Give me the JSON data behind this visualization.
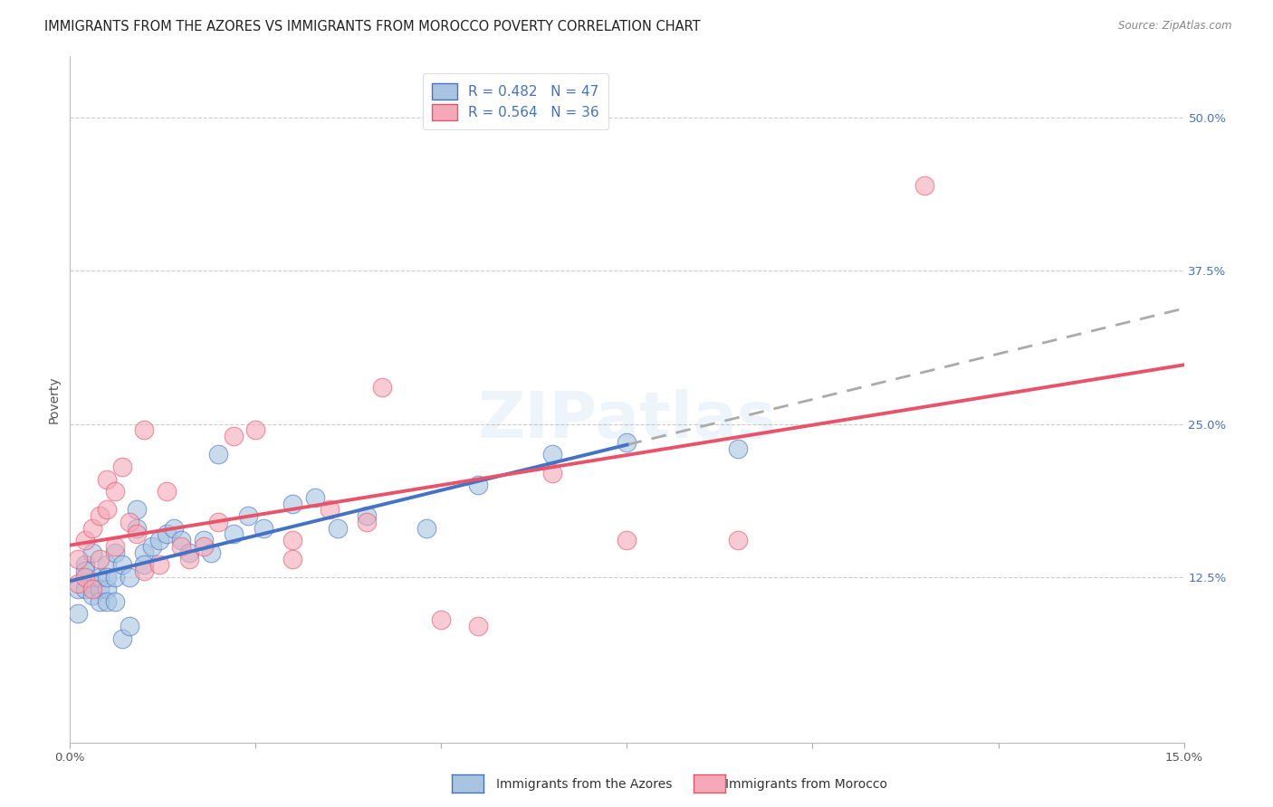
{
  "title": "IMMIGRANTS FROM THE AZORES VS IMMIGRANTS FROM MOROCCO POVERTY CORRELATION CHART",
  "source": "Source: ZipAtlas.com",
  "ylabel": "Poverty",
  "legend_label1": "R = 0.482   N = 47",
  "legend_label2": "R = 0.564   N = 36",
  "legend_sublabel1": "Immigrants from the Azores",
  "legend_sublabel2": "Immigrants from Morocco",
  "xlim": [
    0.0,
    0.15
  ],
  "ylim": [
    -0.01,
    0.55
  ],
  "xtick_positions": [
    0.0,
    0.025,
    0.05,
    0.075,
    0.1,
    0.125,
    0.15
  ],
  "xtick_labels_show": {
    "0.0": "0.0%",
    "0.15": "15.0%"
  },
  "yticks_right": [
    0.125,
    0.25,
    0.375,
    0.5
  ],
  "ytick_labels_right": [
    "12.5%",
    "25.0%",
    "37.5%",
    "50.0%"
  ],
  "color_blue": "#A8C4E0",
  "color_pink": "#F4A8B8",
  "color_blue_line": "#4472C4",
  "color_pink_line": "#E8536A",
  "color_dashed": "#AAAAAA",
  "background": "#FFFFFF",
  "watermark": "ZIPatlas",
  "azores_x": [
    0.001,
    0.001,
    0.002,
    0.002,
    0.002,
    0.003,
    0.003,
    0.003,
    0.004,
    0.004,
    0.004,
    0.005,
    0.005,
    0.005,
    0.005,
    0.006,
    0.006,
    0.006,
    0.007,
    0.007,
    0.008,
    0.008,
    0.009,
    0.009,
    0.01,
    0.01,
    0.011,
    0.012,
    0.013,
    0.014,
    0.015,
    0.016,
    0.018,
    0.019,
    0.02,
    0.022,
    0.024,
    0.026,
    0.03,
    0.033,
    0.036,
    0.04,
    0.048,
    0.055,
    0.065,
    0.075,
    0.09
  ],
  "azores_y": [
    0.115,
    0.095,
    0.135,
    0.115,
    0.13,
    0.12,
    0.11,
    0.145,
    0.115,
    0.105,
    0.125,
    0.135,
    0.115,
    0.105,
    0.125,
    0.145,
    0.125,
    0.105,
    0.135,
    0.075,
    0.085,
    0.125,
    0.165,
    0.18,
    0.145,
    0.135,
    0.15,
    0.155,
    0.16,
    0.165,
    0.155,
    0.145,
    0.155,
    0.145,
    0.225,
    0.16,
    0.175,
    0.165,
    0.185,
    0.19,
    0.165,
    0.175,
    0.165,
    0.2,
    0.225,
    0.235,
    0.23
  ],
  "morocco_x": [
    0.001,
    0.001,
    0.002,
    0.002,
    0.003,
    0.003,
    0.004,
    0.004,
    0.005,
    0.005,
    0.006,
    0.006,
    0.007,
    0.008,
    0.009,
    0.01,
    0.01,
    0.012,
    0.013,
    0.015,
    0.016,
    0.018,
    0.02,
    0.022,
    0.025,
    0.03,
    0.03,
    0.035,
    0.04,
    0.042,
    0.05,
    0.055,
    0.065,
    0.075,
    0.09,
    0.115
  ],
  "morocco_y": [
    0.14,
    0.12,
    0.155,
    0.125,
    0.165,
    0.115,
    0.175,
    0.14,
    0.205,
    0.18,
    0.195,
    0.15,
    0.215,
    0.17,
    0.16,
    0.13,
    0.245,
    0.135,
    0.195,
    0.15,
    0.14,
    0.15,
    0.17,
    0.24,
    0.245,
    0.155,
    0.14,
    0.18,
    0.17,
    0.28,
    0.09,
    0.085,
    0.21,
    0.155,
    0.155,
    0.445
  ],
  "blue_line_x_end": 0.075,
  "title_fontsize": 10.5,
  "tick_fontsize": 9.5,
  "legend_fontsize": 11,
  "watermark_fontsize": 52,
  "watermark_alpha": 0.13
}
